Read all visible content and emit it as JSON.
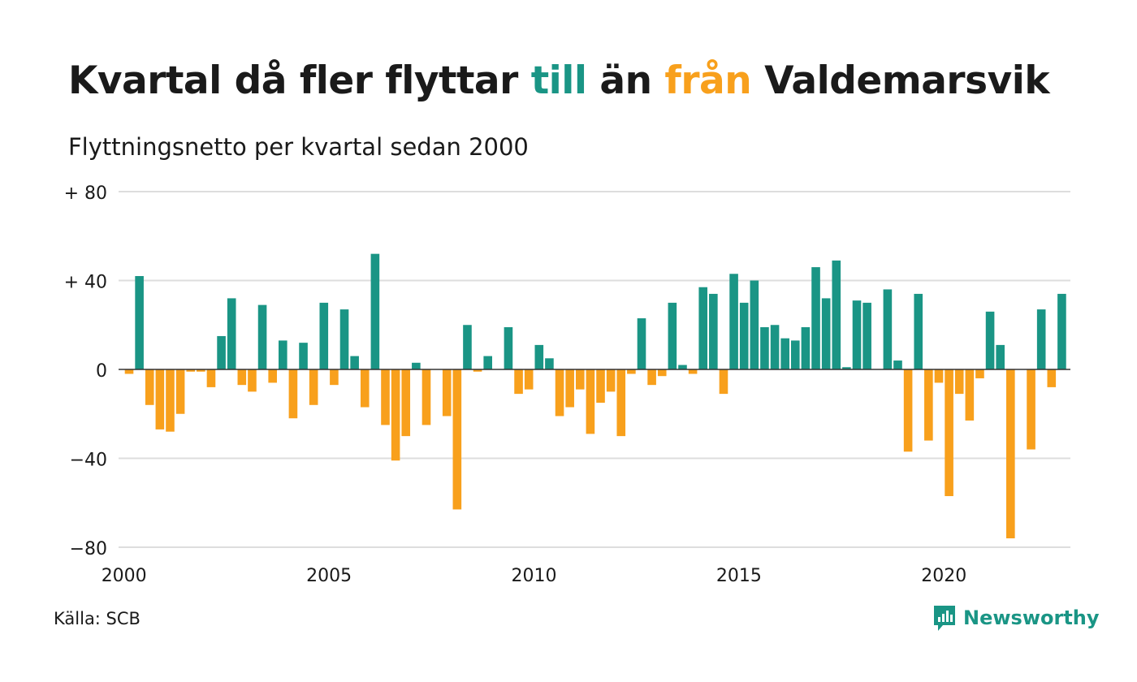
{
  "title": {
    "part1": "Kvartal då fler flyttar ",
    "till": "till",
    "part2": " än ",
    "fran": "från",
    "part3": " Valdemarsvik"
  },
  "subtitle": "Flyttningsnetto per kvartal sedan 2000",
  "source": "Källa: SCB",
  "brand": {
    "name": "Newsworthy",
    "icon": "newsworthy-logo-icon"
  },
  "colors": {
    "positive": "#1a9585",
    "negative": "#f8a01c",
    "grid": "#dddddd",
    "text": "#1a1a1a"
  },
  "chart_data": {
    "type": "bar",
    "title": "Kvartal då fler flyttar till än från Valdemarsvik",
    "subtitle": "Flyttningsnetto per kvartal sedan 2000",
    "x_start_year": 2000,
    "x_ticks": [
      "2000",
      "2005",
      "2010",
      "2015",
      "2020"
    ],
    "y_ticks": [
      {
        "value": 80,
        "label": "+ 80"
      },
      {
        "value": 40,
        "label": "+ 40"
      },
      {
        "value": 0,
        "label": "0"
      },
      {
        "value": -40,
        "label": "−40"
      },
      {
        "value": -80,
        "label": "−80"
      }
    ],
    "ylim": [
      -80,
      80
    ],
    "grid": true,
    "values": [
      -2,
      42,
      -16,
      -27,
      -28,
      -20,
      -1,
      -1,
      -8,
      15,
      32,
      -7,
      -10,
      29,
      -6,
      13,
      -22,
      12,
      -16,
      30,
      -7,
      27,
      6,
      -17,
      52,
      -25,
      -41,
      -30,
      3,
      -25,
      0,
      -21,
      -63,
      20,
      -1,
      6,
      0,
      19,
      -11,
      -9,
      11,
      5,
      -21,
      -17,
      -9,
      -29,
      -15,
      -10,
      -30,
      -2,
      23,
      -7,
      -3,
      30,
      2,
      -2,
      37,
      34,
      -11,
      43,
      30,
      40,
      19,
      20,
      14,
      13,
      19,
      46,
      32,
      49,
      1,
      31,
      30,
      0,
      36,
      4,
      -37,
      34,
      -32,
      -6,
      -57,
      -11,
      -23,
      -4,
      26,
      11,
      -76,
      0,
      -36,
      27,
      -8,
      34
    ]
  }
}
